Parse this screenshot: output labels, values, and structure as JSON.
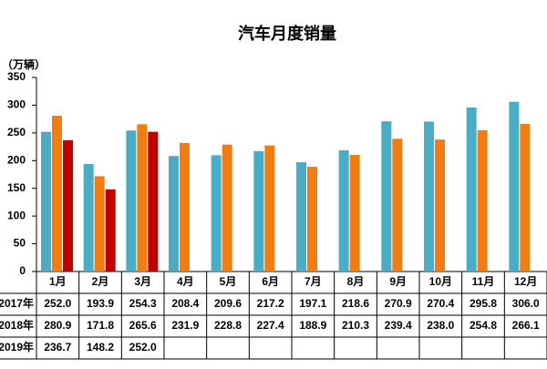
{
  "chart_data": {
    "type": "bar",
    "title": "汽车月度销量",
    "y_label": "（万辆）",
    "categories": [
      "1月",
      "2月",
      "3月",
      "4月",
      "5月",
      "6月",
      "7月",
      "8月",
      "9月",
      "10月",
      "11月",
      "12月"
    ],
    "series": [
      {
        "name": "2017年",
        "color": "#4bacc6",
        "values": [
          252.0,
          193.9,
          254.3,
          208.4,
          209.6,
          217.2,
          197.1,
          218.6,
          270.9,
          270.4,
          295.8,
          306.0
        ],
        "value_labels": [
          "252.0",
          "193.9",
          "254.3",
          "208.4",
          "209.6",
          "217.2",
          "197.1",
          "218.6",
          "270.9",
          "270.4",
          "295.8",
          "306.0"
        ]
      },
      {
        "name": "2018年",
        "color": "#f07c14",
        "values": [
          280.9,
          171.8,
          265.6,
          231.9,
          228.8,
          227.4,
          188.9,
          210.3,
          239.4,
          238.0,
          254.8,
          266.1
        ],
        "value_labels": [
          "280.9",
          "171.8",
          "265.6",
          "231.9",
          "228.8",
          "227.4",
          "188.9",
          "210.3",
          "239.4",
          "238.0",
          "254.8",
          "266.1"
        ]
      },
      {
        "name": "2019年",
        "color": "#c00000",
        "values": [
          236.7,
          148.2,
          252.0,
          null,
          null,
          null,
          null,
          null,
          null,
          null,
          null,
          null
        ],
        "value_labels": [
          "236.7",
          "148.2",
          "252.0",
          null,
          null,
          null,
          null,
          null,
          null,
          null,
          null,
          null
        ]
      }
    ],
    "ylim": [
      0,
      350
    ],
    "yticks": [
      0,
      50,
      100,
      150,
      200,
      250,
      300,
      350
    ]
  }
}
